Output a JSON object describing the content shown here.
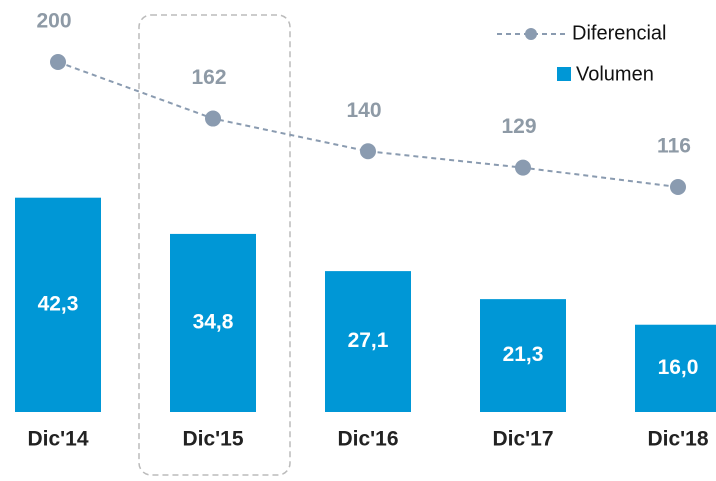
{
  "chart_data": {
    "type": "bar",
    "categories": [
      "Dic'14",
      "Dic'15",
      "Dic'16",
      "Dic'17",
      "Dic'18"
    ],
    "series": [
      {
        "name": "Volumen",
        "type": "bar",
        "color": "#0097d6",
        "values": [
          42.3,
          34.8,
          27.1,
          21.3,
          16.0
        ],
        "value_labels": [
          "42,3",
          "34,8",
          "27,1",
          "21,3",
          "16,0"
        ]
      },
      {
        "name": "Diferencial",
        "type": "line",
        "axis": "y2",
        "color": "#8a9bb0",
        "values": [
          200,
          162,
          140,
          129,
          116
        ]
      }
    ],
    "legend": "top-right"
  }
}
